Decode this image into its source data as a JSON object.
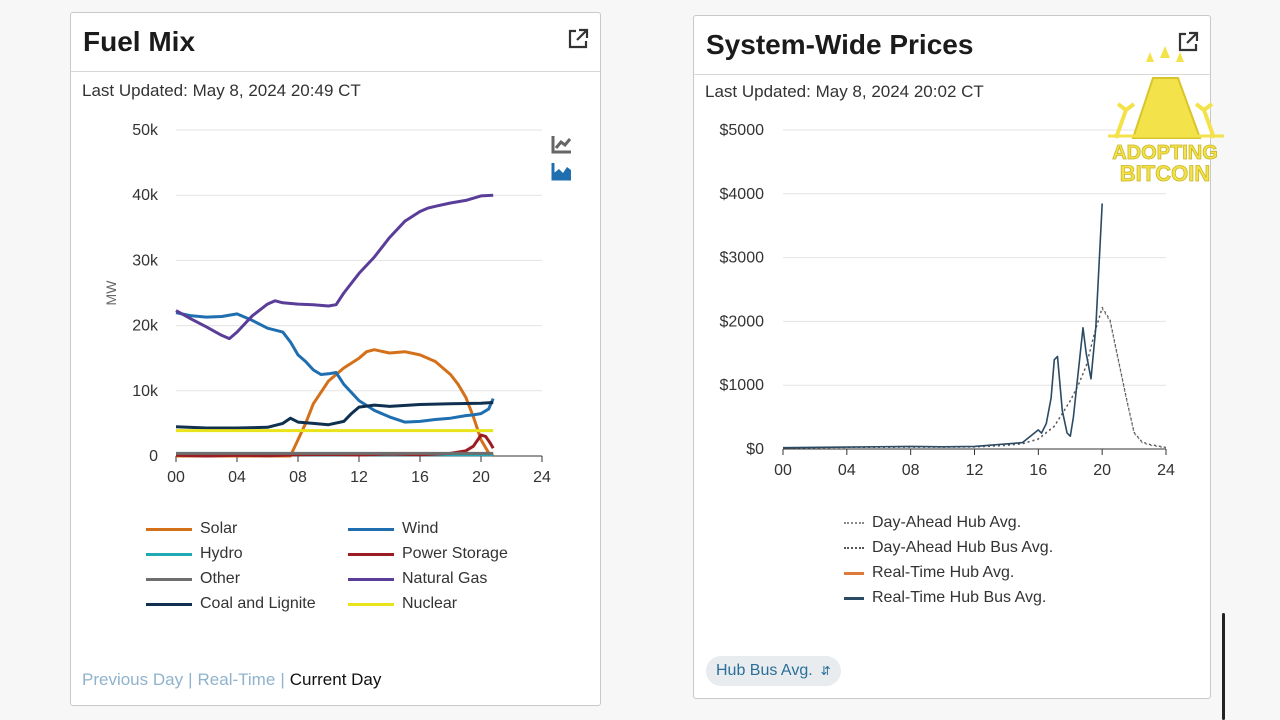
{
  "fuel_mix": {
    "title": "Fuel Mix",
    "last_updated": "Last Updated: May 8, 2024 20:49 CT",
    "nav": {
      "previous_day": "Previous Day",
      "real_time": "Real-Time",
      "current_day": "Current Day",
      "separator": "|"
    },
    "colors": {
      "Solar": "#d4701a",
      "Wind": "#1f6fb0",
      "Hydro": "#21a8b5",
      "Power Storage": "#9b1c22",
      "Other": "#6e6e6e",
      "Natural Gas": "#5a3d99",
      "Coal and Lignite": "#10304f",
      "Nuclear": "#e8e31a"
    }
  },
  "prices": {
    "title": "System-Wide Prices",
    "last_updated": "Last Updated: May 8, 2024 20:02 CT",
    "select_value": "Hub Bus Avg.",
    "colors": {
      "Day-Ahead Hub Avg.": "#8a8a8a",
      "Day-Ahead Hub Bus Avg.": "#555555",
      "Real-Time Hub Avg.": "#e07a3a",
      "Real-Time Hub Bus Avg.": "#2b4a63"
    }
  },
  "watermark": {
    "line1": "ADOPTING",
    "line2": "BITCOIN"
  },
  "chart_data": [
    {
      "type": "line",
      "title": "Fuel Mix",
      "xlabel": "",
      "ylabel": "MW",
      "x_ticks": [
        "00",
        "04",
        "08",
        "12",
        "16",
        "20",
        "24"
      ],
      "y_ticks": [
        "0",
        "10k",
        "20k",
        "30k",
        "40k",
        "50k"
      ],
      "xlim": [
        0,
        24
      ],
      "ylim": [
        0,
        50000
      ],
      "grid": true,
      "legend_position": "bottom",
      "series": [
        {
          "name": "Solar",
          "x": [
            0,
            7.5,
            8,
            8.5,
            9,
            10,
            11,
            12,
            12.5,
            13,
            14,
            15,
            16,
            17,
            18,
            18.5,
            19,
            19.5,
            20,
            20.5,
            20.8
          ],
          "y": [
            0,
            0,
            2500,
            5000,
            8000,
            11500,
            13500,
            15000,
            16000,
            16300,
            15800,
            16000,
            15500,
            14500,
            12500,
            11000,
            9000,
            6000,
            2500,
            500,
            0
          ]
        },
        {
          "name": "Wind",
          "x": [
            0,
            1,
            2,
            3,
            4,
            5,
            6,
            7,
            7.5,
            8,
            8.5,
            9,
            9.5,
            10,
            10.5,
            11,
            12,
            13,
            14,
            15,
            16,
            17,
            18,
            19,
            19.5,
            20,
            20.5,
            20.8
          ],
          "y": [
            22000,
            21500,
            21300,
            21400,
            21800,
            20800,
            19600,
            19000,
            17500,
            15500,
            14500,
            13200,
            12500,
            12600,
            12800,
            11000,
            8500,
            7000,
            6000,
            5200,
            5300,
            5600,
            5800,
            6200,
            6300,
            6500,
            7200,
            8800
          ]
        },
        {
          "name": "Hydro",
          "x": [
            0,
            4,
            8,
            12,
            16,
            20,
            20.8
          ],
          "y": [
            200,
            200,
            200,
            200,
            200,
            200,
            200
          ]
        },
        {
          "name": "Power Storage",
          "x": [
            0,
            2,
            4,
            6,
            8,
            10,
            12,
            14,
            16,
            18,
            19,
            19.5,
            20,
            20.3,
            20.6,
            20.8
          ],
          "y": [
            100,
            0,
            100,
            50,
            200,
            250,
            150,
            300,
            200,
            400,
            800,
            1500,
            3200,
            3000,
            2000,
            1200
          ]
        },
        {
          "name": "Other",
          "x": [
            0,
            4,
            8,
            12,
            16,
            20,
            20.8
          ],
          "y": [
            400,
            400,
            400,
            400,
            400,
            400,
            400
          ]
        },
        {
          "name": "Natural Gas",
          "x": [
            0,
            1,
            2,
            3,
            3.5,
            4,
            5,
            6,
            6.5,
            7,
            8,
            9,
            10,
            10.5,
            11,
            12,
            13,
            14,
            15,
            16,
            16.5,
            17,
            18,
            19,
            20,
            20.8
          ],
          "y": [
            22300,
            21000,
            19800,
            18500,
            18000,
            19000,
            21500,
            23300,
            23800,
            23500,
            23300,
            23200,
            23000,
            23200,
            25000,
            28000,
            30500,
            33500,
            36000,
            37500,
            38000,
            38300,
            38800,
            39200,
            39900,
            40000
          ]
        },
        {
          "name": "Coal and Lignite",
          "x": [
            0,
            2,
            4,
            6,
            7,
            7.5,
            8,
            9,
            10,
            11,
            11.5,
            12,
            13,
            14,
            16,
            18,
            20,
            20.8
          ],
          "y": [
            4500,
            4300,
            4300,
            4400,
            5000,
            5800,
            5200,
            5000,
            4800,
            5300,
            6500,
            7500,
            7800,
            7600,
            7900,
            8000,
            8100,
            8200
          ]
        },
        {
          "name": "Nuclear",
          "x": [
            0,
            20.8
          ],
          "y": [
            3900,
            3900
          ]
        }
      ]
    },
    {
      "type": "line",
      "title": "System-Wide Prices",
      "xlabel": "",
      "ylabel": "",
      "x_ticks": [
        "00",
        "04",
        "08",
        "12",
        "16",
        "20",
        "24"
      ],
      "y_ticks": [
        "$0",
        "$1000",
        "$2000",
        "$3000",
        "$4000",
        "$5000"
      ],
      "xlim": [
        0,
        24
      ],
      "ylim": [
        0,
        5000
      ],
      "grid": true,
      "legend_position": "bottom",
      "series": [
        {
          "name": "Day-Ahead Hub Avg.",
          "x": [
            0,
            4,
            8,
            10,
            12,
            13,
            14,
            15,
            16,
            16.5,
            17,
            17.5,
            18,
            18.5,
            19,
            19.5,
            20,
            20.5,
            21,
            21.5,
            22,
            22.5,
            23,
            24
          ],
          "y": [
            15,
            25,
            30,
            30,
            30,
            40,
            55,
            80,
            150,
            250,
            350,
            550,
            750,
            1000,
            1300,
            1800,
            2200,
            2000,
            1400,
            800,
            250,
            100,
            60,
            20
          ]
        },
        {
          "name": "Day-Ahead Hub Bus Avg.",
          "x": [
            0,
            4,
            8,
            10,
            12,
            13,
            14,
            15,
            16,
            16.5,
            17,
            17.5,
            18,
            18.5,
            19,
            19.5,
            20,
            20.5,
            21,
            21.5,
            22,
            22.5,
            23,
            24
          ],
          "y": [
            15,
            25,
            30,
            30,
            35,
            45,
            60,
            85,
            160,
            260,
            360,
            560,
            760,
            1000,
            1300,
            1800,
            2220,
            2020,
            1420,
            820,
            260,
            110,
            70,
            25
          ]
        },
        {
          "name": "Real-Time Hub Avg.",
          "x": [],
          "y": []
        },
        {
          "name": "Real-Time Hub Bus Avg.",
          "x": [
            0,
            4,
            8,
            10,
            12,
            13,
            13.5,
            14,
            14.5,
            15,
            15.5,
            16,
            16.2,
            16.5,
            16.8,
            17,
            17.2,
            17.5,
            17.8,
            18,
            18.2,
            18.5,
            18.8,
            19,
            19.3,
            19.6,
            20
          ],
          "y": [
            20,
            30,
            40,
            35,
            40,
            60,
            70,
            80,
            90,
            100,
            200,
            300,
            250,
            400,
            800,
            1400,
            1450,
            600,
            250,
            200,
            500,
            1200,
            1900,
            1500,
            1100,
            1900,
            3850
          ]
        }
      ]
    }
  ]
}
